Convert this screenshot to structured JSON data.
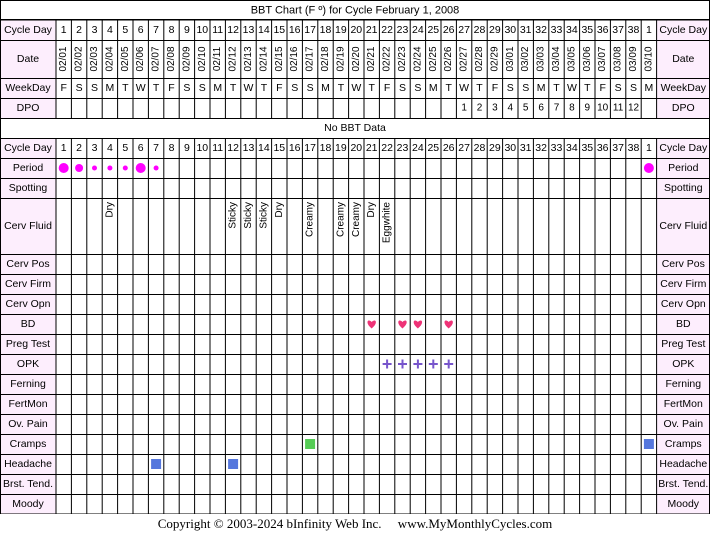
{
  "title": "BBT Chart (F º) for Cycle February 1, 2008",
  "copyright": "Copyright © 2003-2024 bInfinity Web Inc.     www.MyMonthlyCycles.com",
  "no_bbt_label": "No BBT Data",
  "colors": {
    "grid": "#000000",
    "label_bg": "#fdeefd",
    "period": "#ff00ff",
    "bd_heart": "#ee3377",
    "opk": "#7755cc",
    "cramps": "#55cc55",
    "symptom_square": "#5577dd"
  },
  "chart_data": {
    "type": "table",
    "cycle_days": [
      "1",
      "2",
      "3",
      "4",
      "5",
      "6",
      "7",
      "8",
      "9",
      "10",
      "11",
      "12",
      "13",
      "14",
      "15",
      "16",
      "17",
      "18",
      "19",
      "20",
      "21",
      "22",
      "23",
      "24",
      "25",
      "26",
      "27",
      "28",
      "29",
      "30",
      "31",
      "32",
      "33",
      "34",
      "35",
      "36",
      "37",
      "38",
      "1"
    ],
    "dates": [
      "02/01",
      "02/02",
      "02/03",
      "02/04",
      "02/05",
      "02/06",
      "02/07",
      "02/08",
      "02/09",
      "02/10",
      "02/11",
      "02/12",
      "02/13",
      "02/14",
      "02/15",
      "02/16",
      "02/17",
      "02/18",
      "02/19",
      "02/20",
      "02/21",
      "02/22",
      "02/23",
      "02/24",
      "02/25",
      "02/26",
      "02/27",
      "02/28",
      "02/29",
      "03/01",
      "03/02",
      "03/03",
      "03/04",
      "03/05",
      "03/06",
      "03/07",
      "03/08",
      "03/09",
      "03/10"
    ],
    "weekdays": [
      "F",
      "S",
      "S",
      "M",
      "T",
      "W",
      "T",
      "F",
      "S",
      "S",
      "M",
      "T",
      "W",
      "T",
      "F",
      "S",
      "S",
      "M",
      "T",
      "W",
      "T",
      "F",
      "S",
      "S",
      "M",
      "T",
      "W",
      "T",
      "F",
      "S",
      "S",
      "M",
      "T",
      "W",
      "T",
      "F",
      "S",
      "S",
      "M"
    ],
    "dpo": [
      "",
      "",
      "",
      "",
      "",
      "",
      "",
      "",
      "",
      "",
      "",
      "",
      "",
      "",
      "",
      "",
      "",
      "",
      "",
      "",
      "",
      "",
      "",
      "",
      "",
      "",
      "1",
      "2",
      "3",
      "4",
      "5",
      "6",
      "7",
      "8",
      "9",
      "10",
      "11",
      "12",
      ""
    ],
    "header_rows": [
      {
        "key": "cycle_day",
        "label": "Cycle Day"
      },
      {
        "key": "date",
        "label": "Date"
      },
      {
        "key": "weekday",
        "label": "WeekDay"
      },
      {
        "key": "dpo",
        "label": "DPO"
      }
    ],
    "second_header_label": "Cycle Day",
    "observation_rows": [
      {
        "key": "period",
        "label": "Period",
        "tall": false
      },
      {
        "key": "spotting",
        "label": "Spotting",
        "tall": false
      },
      {
        "key": "cerv_fluid",
        "label": "Cerv Fluid",
        "tall": true
      },
      {
        "key": "cerv_pos",
        "label": "Cerv Pos",
        "tall": false
      },
      {
        "key": "cerv_firm",
        "label": "Cerv Firm",
        "tall": false
      },
      {
        "key": "cerv_opn",
        "label": "Cerv Opn",
        "tall": false
      },
      {
        "key": "bd",
        "label": "BD",
        "tall": false
      },
      {
        "key": "preg_test",
        "label": "Preg Test",
        "tall": false
      },
      {
        "key": "opk",
        "label": "OPK",
        "tall": false
      },
      {
        "key": "ferning",
        "label": "Ferning",
        "tall": false
      },
      {
        "key": "fertmon",
        "label": "FertMon",
        "tall": false
      },
      {
        "key": "ov_pain",
        "label": "Ov. Pain",
        "tall": false
      },
      {
        "key": "cramps",
        "label": "Cramps",
        "tall": false
      },
      {
        "key": "headache",
        "label": "Headache",
        "tall": false
      },
      {
        "key": "brst_tend",
        "label": "Brst. Tend.",
        "tall": false
      },
      {
        "key": "moody",
        "label": "Moody",
        "tall": false
      }
    ],
    "period": [
      {
        "day": 1,
        "flow": "heavy"
      },
      {
        "day": 2,
        "flow": "medium"
      },
      {
        "day": 3,
        "flow": "light"
      },
      {
        "day": 4,
        "flow": "light"
      },
      {
        "day": 5,
        "flow": "light"
      },
      {
        "day": 6,
        "flow": "heavy"
      },
      {
        "day": 7,
        "flow": "light"
      },
      {
        "day": 39,
        "flow": "heavy"
      }
    ],
    "cerv_fluid": [
      {
        "day": 4,
        "value": "Dry"
      },
      {
        "day": 12,
        "value": "Sticky"
      },
      {
        "day": 13,
        "value": "Sticky"
      },
      {
        "day": 14,
        "value": "Sticky"
      },
      {
        "day": 15,
        "value": "Dry"
      },
      {
        "day": 17,
        "value": "Creamy"
      },
      {
        "day": 19,
        "value": "Creamy"
      },
      {
        "day": 20,
        "value": "Creamy"
      },
      {
        "day": 21,
        "value": "Dry"
      },
      {
        "day": 22,
        "value": "Eggwhite"
      }
    ],
    "bd": [
      21,
      23,
      24,
      26
    ],
    "opk": [
      22,
      23,
      24,
      25,
      26
    ],
    "cramps": [
      17,
      39
    ],
    "headache": [
      7,
      12
    ]
  }
}
